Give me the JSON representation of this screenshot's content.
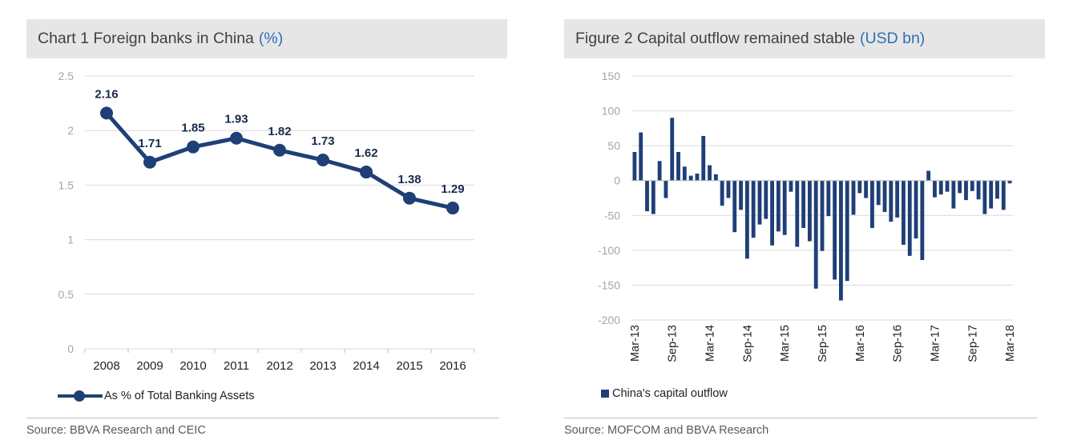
{
  "colors": {
    "series": "#1f3f77",
    "accent": "#2e6fb7",
    "grid": "#d9d9d9",
    "axis_text": "#a6a6a6"
  },
  "chart1": {
    "title": "Chart 1 Foreign banks in China",
    "unit": "(%)",
    "legend": "As % of Total Banking Assets",
    "source": "Source: BBVA Research and CEIC"
  },
  "chart2": {
    "title": "Figure 2 Capital outflow remained stable",
    "unit": "(USD bn)",
    "legend": "China's capital outflow",
    "source": "Source: MOFCOM and BBVA Research"
  },
  "chart_data": [
    {
      "type": "line",
      "title": "Chart 1 Foreign banks in China (%)",
      "categories": [
        "2008",
        "2009",
        "2010",
        "2011",
        "2012",
        "2013",
        "2014",
        "2015",
        "2016"
      ],
      "series": [
        {
          "name": "As % of Total Banking Assets",
          "values": [
            2.16,
            1.71,
            1.85,
            1.93,
            1.82,
            1.73,
            1.62,
            1.38,
            1.29
          ],
          "labels": [
            "2.16",
            "1.71",
            "1.85",
            "1.93",
            "1.82",
            "1.73",
            "1.62",
            "1.38",
            "1.29"
          ]
        }
      ],
      "ylim": [
        0,
        2.5
      ],
      "yticks": [
        0,
        0.5,
        1,
        1.5,
        2,
        2.5
      ],
      "ytick_labels": [
        "0",
        "0.5",
        "1",
        "1.5",
        "2",
        "2.5"
      ],
      "grid": true,
      "legend_position": "bottom-left"
    },
    {
      "type": "bar",
      "title": "Figure 2 Capital outflow remained stable (USD bn)",
      "start_month": "2013-03",
      "xtick_labels": [
        "Mar-13",
        "Sep-13",
        "Mar-14",
        "Sep-14",
        "Mar-15",
        "Sep-15",
        "Mar-16",
        "Sep-16",
        "Mar-17",
        "Sep-17",
        "Mar-18"
      ],
      "series": [
        {
          "name": "China's capital outflow",
          "values": [
            41,
            69,
            -44,
            -48,
            28,
            -25,
            90,
            41,
            20,
            7,
            10,
            64,
            22,
            9,
            -36,
            -25,
            -74,
            -42,
            -112,
            -82,
            -63,
            -55,
            -93,
            -73,
            -78,
            -16,
            -95,
            -68,
            -87,
            -155,
            -101,
            -51,
            -142,
            -172,
            -144,
            -49,
            -18,
            -25,
            -68,
            -35,
            -45,
            -59,
            -53,
            -92,
            -108,
            -83,
            -114,
            14,
            -24,
            -20,
            -16,
            -40,
            -18,
            -28,
            -15,
            -27,
            -48,
            -40,
            -26,
            -42,
            -4
          ]
        }
      ],
      "ylim": [
        -200,
        150
      ],
      "yticks": [
        -200,
        -150,
        -100,
        -50,
        0,
        50,
        100,
        150
      ],
      "ytick_labels": [
        "-200",
        "-150",
        "-100",
        "-50",
        "0",
        "50",
        "100",
        "150"
      ],
      "grid": true,
      "legend_position": "bottom-left"
    }
  ]
}
